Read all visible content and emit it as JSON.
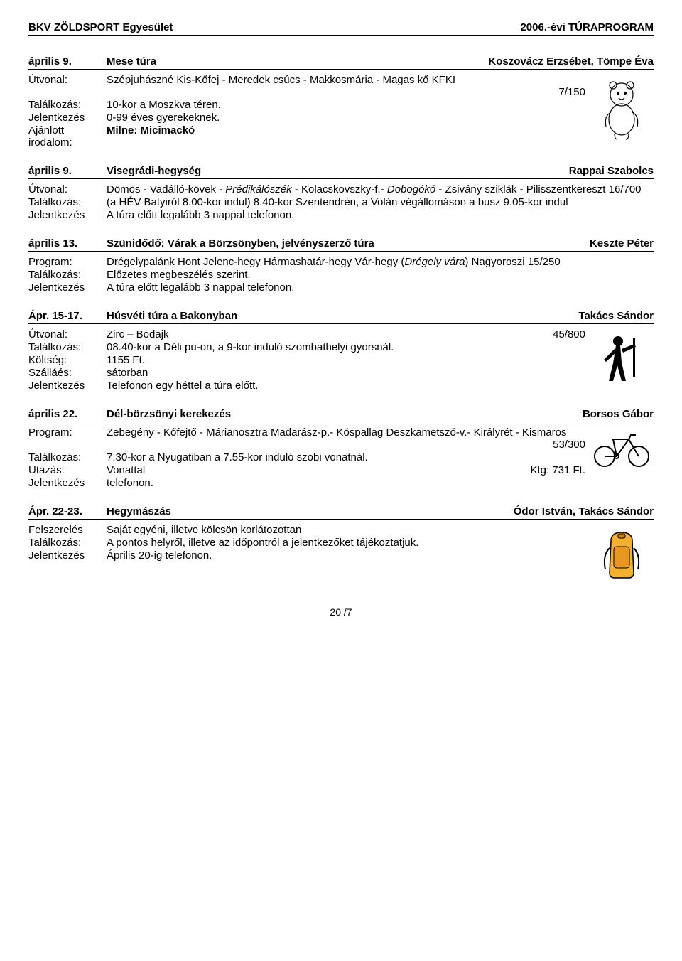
{
  "header": {
    "left": "BKV ZÖLDSPORT Egyesület",
    "right": "2006.-évi TÚRAPROGRAM"
  },
  "events": [
    {
      "date": "április 9.",
      "title": "Mese túra",
      "leader": "Koszovácz Erzsébet, Tömpe Éva",
      "icon": "pooh",
      "rows": [
        {
          "label": "Útvonal:",
          "value": "Szépjuhászné Kis-Kőfej - Meredek csúcs - Makkosmária - Magas kő KFKI",
          "extra": "7/150",
          "extraNewline": true
        },
        {
          "label": "Találkozás:",
          "value": "10-kor a Moszkva téren."
        },
        {
          "label": "Jelentkezés",
          "value": "0-99 éves gyerekeknek."
        },
        {
          "label": "Ajánlott irodalom:",
          "value": "Milne: Micimackó",
          "bold": true
        }
      ]
    },
    {
      "date": "április 9.",
      "title": "Visegrádi-hegység",
      "leader": "Rappai Szabolcs",
      "rows": [
        {
          "label": "Útvonal:",
          "value": "Dömös - Vadálló-kövek - <i>Prédikálószék</i> - Kolacskovszky-f.- <i>Dobogókő</i> - Zsivány sziklák - Pilisszentkereszt 16/700",
          "html": true
        },
        {
          "label": "Találkozás:",
          "value": "(a HÉV Batyiról 8.00-kor indul) 8.40-kor Szentendrén, a Volán végállomáson a busz 9.05-kor indul"
        },
        {
          "label": "Jelentkezés",
          "value": "A túra előtt legalább 3 nappal telefonon."
        }
      ]
    },
    {
      "date": "április 13.",
      "title": "Szünidődő: Várak a Börzsönyben, jelvényszerző túra",
      "leader": "Keszte Péter",
      "rows": [
        {
          "label": "Program:",
          "value": "Drégelypalánk Hont Jelenc-hegy Hármashatár-hegy Vár-hegy (<i>Drégely vára</i>) Nagyoroszi 15/250",
          "html": true
        },
        {
          "label": "Találkozás:",
          "value": "Előzetes megbeszélés szerint."
        },
        {
          "label": "Jelentkezés",
          "value": "A túra előtt legalább 3 nappal telefonon."
        }
      ]
    },
    {
      "date": "Ápr. 15-17.",
      "title": "Húsvéti túra a Bakonyban",
      "leader": "Takács Sándor",
      "icon": "hiker",
      "rows": [
        {
          "label": "Útvonal:",
          "value": "Zirc – Bodajk",
          "extra": "45/800"
        },
        {
          "label": "Találkozás:",
          "value": "08.40-kor a Déli pu-on, a 9-kor induló szombathelyi gyorsnál."
        },
        {
          "label": "Költség:",
          "value": "1155 Ft."
        },
        {
          "label": "Szálláés:",
          "value": "sátorban"
        },
        {
          "label": "Jelentkezés",
          "value": "Telefonon egy héttel a túra előtt."
        }
      ]
    },
    {
      "date": "április 22.",
      "title": "Dél-börzsönyi kerekezés",
      "leader": "Borsos Gábor",
      "icon": "bike",
      "rows": [
        {
          "label": "Program:",
          "value": "Zebegény - Kőfejtő - Márianosztra Madarász-p.- Kóspallag Deszkametsző-v.- Királyrét - Kismaros",
          "extra": "53/300",
          "extraNewline": true
        },
        {
          "label": "Találkozás:",
          "value": "7.30-kor a Nyugatiban a 7.55-kor induló szobi vonatnál."
        },
        {
          "label": "Utazás:",
          "value": "Vonattal",
          "extra": "Ktg: 731 Ft."
        },
        {
          "label": "Jelentkezés",
          "value": "telefonon."
        }
      ]
    },
    {
      "date": "Ápr. 22-23.",
      "title": "Hegymászás",
      "leader": "Ódor István, Takács Sándor",
      "icon": "backpack",
      "rows": [
        {
          "label": "Felszerelés",
          "value": "Saját egyéni, illetve kölcsön korlátozottan"
        },
        {
          "label": "Találkozás:",
          "value": "A pontos helyről, illetve az időpontról a jelentkezőket tájékoztatjuk."
        },
        {
          "label": "Jelentkezés",
          "value": "Április 20-ig telefonon."
        }
      ]
    }
  ],
  "footer": "20 /7"
}
